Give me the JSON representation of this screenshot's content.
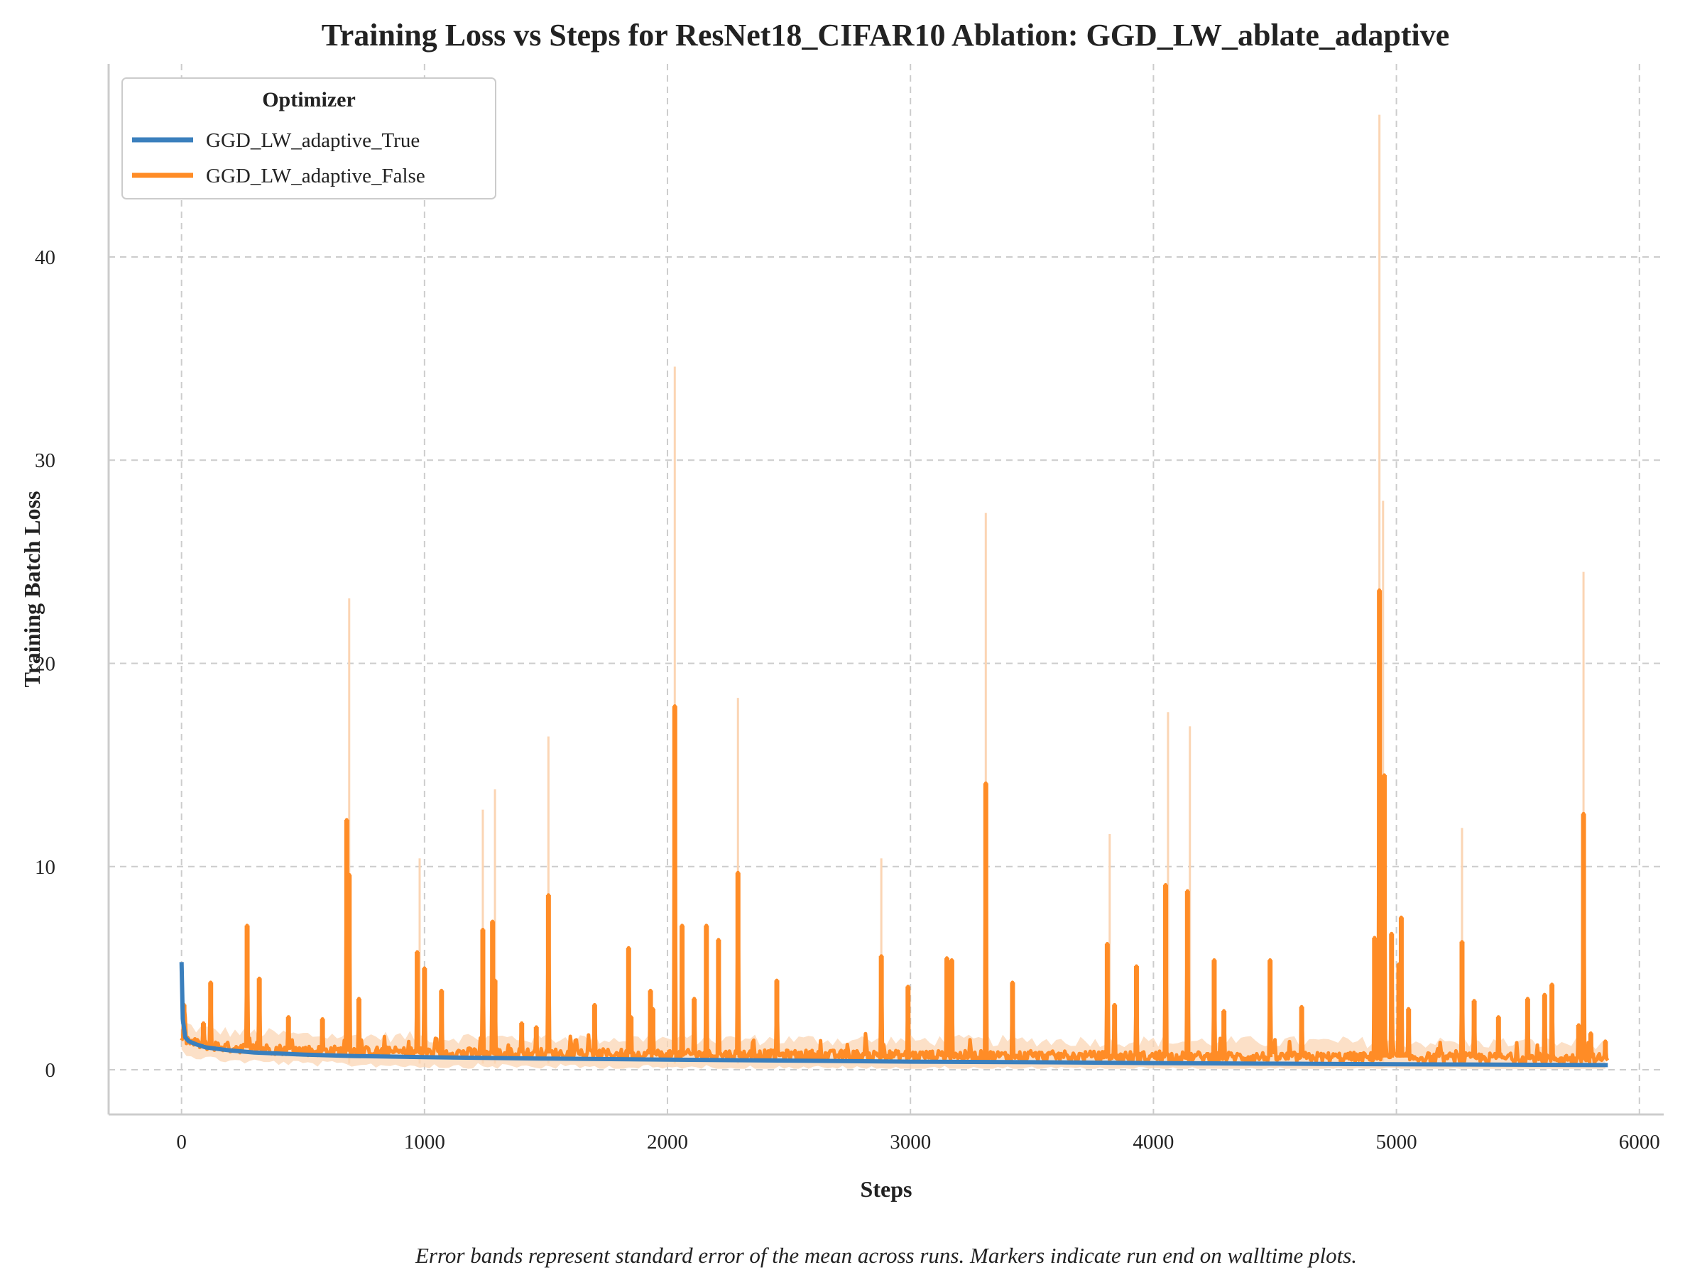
{
  "chart_data": {
    "type": "line",
    "title": "Training Loss vs Steps for ResNet18_CIFAR10 Ablation: GGD_LW_ablate_adaptive",
    "xlabel": "Steps",
    "ylabel": "Training Batch Loss",
    "xlim": [
      -300,
      6100
    ],
    "ylim": [
      -2.2,
      49.5
    ],
    "xticks": [
      0,
      1000,
      2000,
      3000,
      4000,
      5000,
      6000
    ],
    "yticks": [
      0,
      10,
      20,
      30,
      40
    ],
    "grid": true,
    "legend": {
      "title": "Optimizer",
      "placement": "top-left"
    },
    "series": [
      {
        "name": "GGD_LW_adaptive_True",
        "color": "#3a7fbd",
        "points": [
          [
            0,
            5.3
          ],
          [
            5,
            2.5
          ],
          [
            15,
            1.6
          ],
          [
            30,
            1.4
          ],
          [
            60,
            1.25
          ],
          [
            100,
            1.1
          ],
          [
            200,
            0.95
          ],
          [
            300,
            0.85
          ],
          [
            500,
            0.75
          ],
          [
            700,
            0.68
          ],
          [
            1000,
            0.62
          ],
          [
            1500,
            0.55
          ],
          [
            2000,
            0.5
          ],
          [
            2500,
            0.45
          ],
          [
            3000,
            0.4
          ],
          [
            3500,
            0.37
          ],
          [
            4000,
            0.33
          ],
          [
            4500,
            0.3
          ],
          [
            5000,
            0.27
          ],
          [
            5500,
            0.25
          ],
          [
            5870,
            0.23
          ]
        ]
      },
      {
        "name": "GGD_LW_adaptive_False",
        "color": "#ff8c26",
        "band_color": "#fbd5b4",
        "baseline": [
          [
            0,
            1.6
          ],
          [
            50,
            1.3
          ],
          [
            200,
            1.1
          ],
          [
            500,
            0.95
          ],
          [
            1000,
            0.85
          ],
          [
            2000,
            0.75
          ],
          [
            3000,
            0.7
          ],
          [
            4000,
            0.65
          ],
          [
            5000,
            0.6
          ],
          [
            5870,
            0.55
          ]
        ],
        "spikes": [
          [
            10,
            3.2
          ],
          [
            90,
            2.3
          ],
          [
            120,
            4.3
          ],
          [
            270,
            7.1
          ],
          [
            320,
            4.5
          ],
          [
            440,
            2.6
          ],
          [
            580,
            2.5
          ],
          [
            680,
            12.3
          ],
          [
            690,
            9.6
          ],
          [
            730,
            3.5
          ],
          [
            970,
            5.8
          ],
          [
            1000,
            5.0
          ],
          [
            1070,
            3.9
          ],
          [
            1240,
            6.9
          ],
          [
            1280,
            7.3
          ],
          [
            1290,
            4.4
          ],
          [
            1400,
            2.3
          ],
          [
            1460,
            2.1
          ],
          [
            1510,
            8.6
          ],
          [
            1700,
            3.2
          ],
          [
            1840,
            6.0
          ],
          [
            1850,
            2.6
          ],
          [
            1930,
            3.9
          ],
          [
            1940,
            3.0
          ],
          [
            2030,
            17.9
          ],
          [
            2060,
            7.1
          ],
          [
            2110,
            3.5
          ],
          [
            2160,
            7.1
          ],
          [
            2210,
            6.4
          ],
          [
            2290,
            9.7
          ],
          [
            2450,
            4.4
          ],
          [
            2880,
            5.6
          ],
          [
            2990,
            4.1
          ],
          [
            3150,
            5.5
          ],
          [
            3170,
            5.4
          ],
          [
            3310,
            14.1
          ],
          [
            3420,
            4.3
          ],
          [
            3810,
            6.2
          ],
          [
            3840,
            3.2
          ],
          [
            3930,
            5.1
          ],
          [
            4050,
            9.1
          ],
          [
            4140,
            8.8
          ],
          [
            4250,
            5.4
          ],
          [
            4290,
            2.9
          ],
          [
            4480,
            5.4
          ],
          [
            4610,
            3.1
          ],
          [
            4910,
            6.5
          ],
          [
            4930,
            23.6
          ],
          [
            4950,
            14.5
          ],
          [
            4980,
            6.7
          ],
          [
            5010,
            5.2
          ],
          [
            5020,
            7.5
          ],
          [
            5050,
            3.0
          ],
          [
            5270,
            6.3
          ],
          [
            5320,
            3.4
          ],
          [
            5420,
            2.6
          ],
          [
            5540,
            3.5
          ],
          [
            5610,
            3.7
          ],
          [
            5640,
            4.2
          ],
          [
            5750,
            2.2
          ],
          [
            5770,
            12.6
          ],
          [
            5800,
            1.8
          ],
          [
            5860,
            1.4
          ]
        ],
        "band_spikes": [
          [
            690,
            23.2
          ],
          [
            980,
            10.4
          ],
          [
            1240,
            12.8
          ],
          [
            1290,
            13.8
          ],
          [
            1510,
            16.4
          ],
          [
            2030,
            34.6
          ],
          [
            2290,
            18.3
          ],
          [
            2880,
            10.4
          ],
          [
            3310,
            27.4
          ],
          [
            3820,
            11.6
          ],
          [
            4060,
            17.6
          ],
          [
            4150,
            16.9
          ],
          [
            4930,
            47.0
          ],
          [
            4945,
            28.0
          ],
          [
            5270,
            11.9
          ],
          [
            5770,
            24.5
          ]
        ]
      }
    ],
    "caption": "Error bands represent standard error of the mean across runs. Markers indicate run end on walltime plots."
  }
}
